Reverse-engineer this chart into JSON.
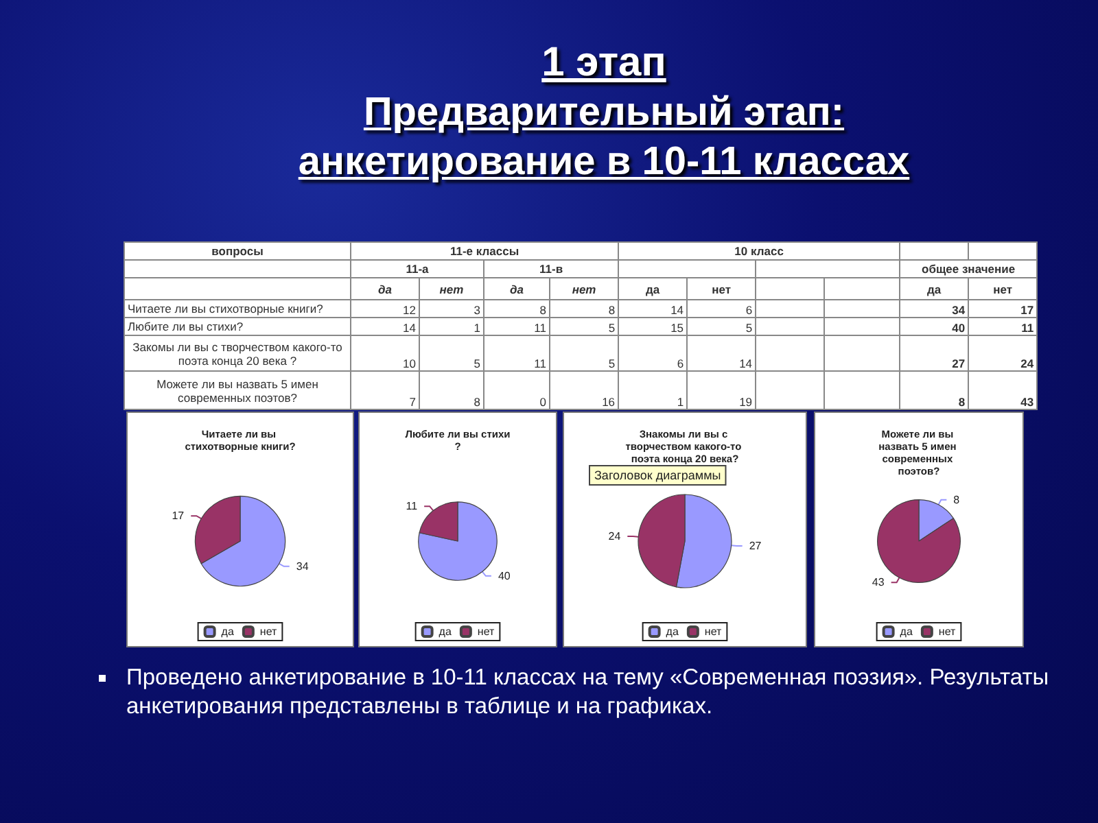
{
  "chart_data": [
    {
      "type": "other",
      "title": "1 этап",
      "subtitle": "Предварительный этап:\nанкетирование в 10-11 классах",
      "annotations": [
        "Проведено анкетирование в 10-11 классах на тему «Современная поэзия». Результаты анкетирования представлены в таблице и на графиках."
      ]
    },
    {
      "type": "other",
      "ylabel": "вопросы",
      "data_labels": true,
      "annotations": [
        "11-е классы",
        "11-а",
        "11-в",
        "10 класс",
        "общее значение"
      ],
      "categories": [
        "Читаете ли вы стихотворные книги?",
        "Любите ли вы стихи?",
        "Закомы ли вы с творчеством какого-то поэта конца 20 века ?",
        "Можете ли вы назвать 5 имен современных поэтов?"
      ],
      "series": [
        {
          "name": "да",
          "values": [
            12,
            14,
            10,
            7
          ]
        },
        {
          "name": "нет",
          "values": [
            3,
            1,
            5,
            8
          ]
        },
        {
          "name": "да",
          "values": [
            8,
            11,
            11,
            0
          ]
        },
        {
          "name": "нет",
          "values": [
            8,
            5,
            5,
            16
          ]
        },
        {
          "name": "да",
          "values": [
            14,
            15,
            6,
            1
          ]
        },
        {
          "name": "нет",
          "values": [
            6,
            5,
            14,
            19
          ]
        },
        {
          "name": "да",
          "values": [
            34,
            40,
            27,
            8
          ]
        },
        {
          "name": "нет",
          "values": [
            17,
            11,
            24,
            43
          ]
        }
      ]
    },
    {
      "type": "pie",
      "title": "Читаете ли вы стихотворные книги?",
      "categories": [
        "да",
        "нет"
      ],
      "values": [
        34,
        17
      ],
      "colors": [
        "#9999ff",
        "#993366"
      ],
      "data_labels": true,
      "legend": "bottom"
    },
    {
      "type": "pie",
      "title": "Любите ли вы стихи?",
      "categories": [
        "да",
        "нет"
      ],
      "values": [
        40,
        11
      ],
      "colors": [
        "#9999ff",
        "#993366"
      ],
      "data_labels": true,
      "legend": "bottom"
    },
    {
      "type": "pie",
      "title": "Знакомы ли вы с творчеством какого-то поэта конца 20 века?",
      "categories": [
        "да",
        "нет"
      ],
      "values": [
        27,
        24
      ],
      "colors": [
        "#9999ff",
        "#993366"
      ],
      "data_labels": true,
      "legend": "bottom",
      "annotations": [
        "Заголовок диаграммы"
      ]
    },
    {
      "type": "pie",
      "title": "Можете ли вы назвать 5 имен современных поэтов?",
      "categories": [
        "да",
        "нет"
      ],
      "values": [
        8,
        43
      ],
      "colors": [
        "#9999ff",
        "#993366"
      ],
      "data_labels": true,
      "legend": "bottom"
    }
  ]
}
